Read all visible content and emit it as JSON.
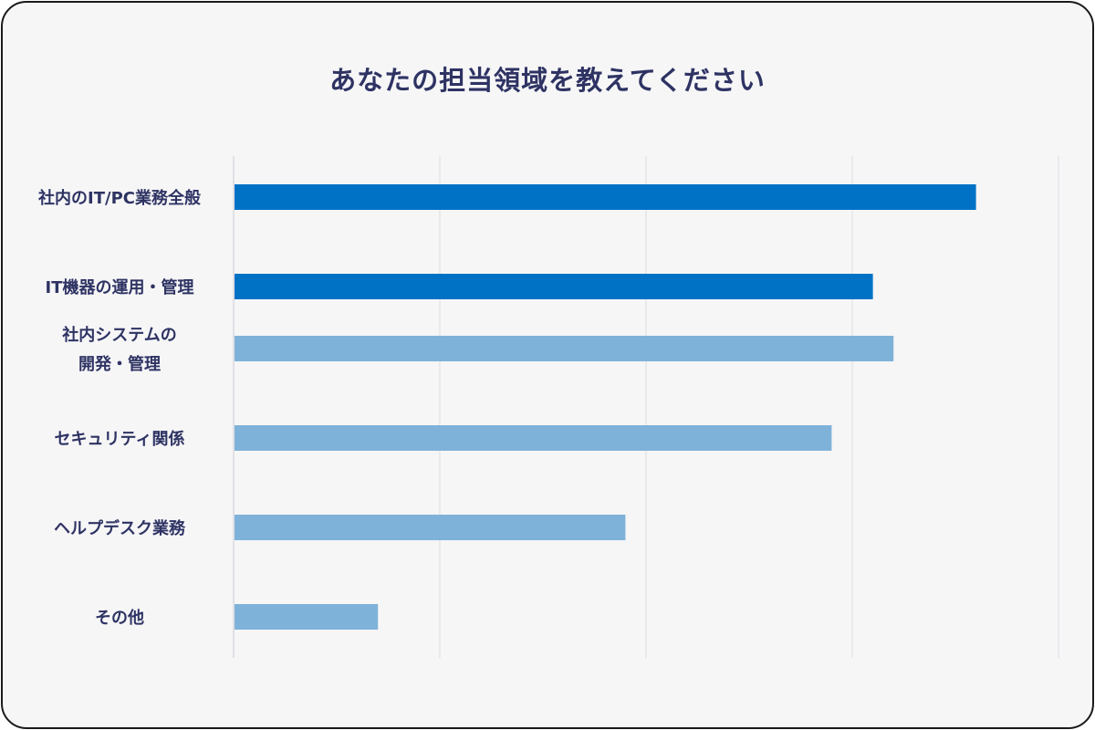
{
  "chart_data": {
    "type": "bar",
    "orientation": "horizontal",
    "title": "あなたの担当領域を教えてください",
    "categories": [
      "社内のIT/PC業務全般",
      "IT機器の運用・管理",
      "社内システムの\n開発・管理",
      "セキュリティ関係",
      "ヘルプデスク業務",
      "その他"
    ],
    "values": [
      90,
      77.5,
      80,
      72.5,
      47.5,
      17.5
    ],
    "highlight": [
      true,
      true,
      false,
      false,
      false,
      false
    ],
    "xlim": [
      0,
      100
    ],
    "gridlines": [
      0,
      25,
      50,
      75,
      100
    ],
    "grid": true,
    "colors": {
      "highlight": "#0072c6",
      "normal": "#7fb2d9",
      "grid": "#dcdde2",
      "axis": "#c9cad6",
      "text": "#2e3363"
    }
  }
}
